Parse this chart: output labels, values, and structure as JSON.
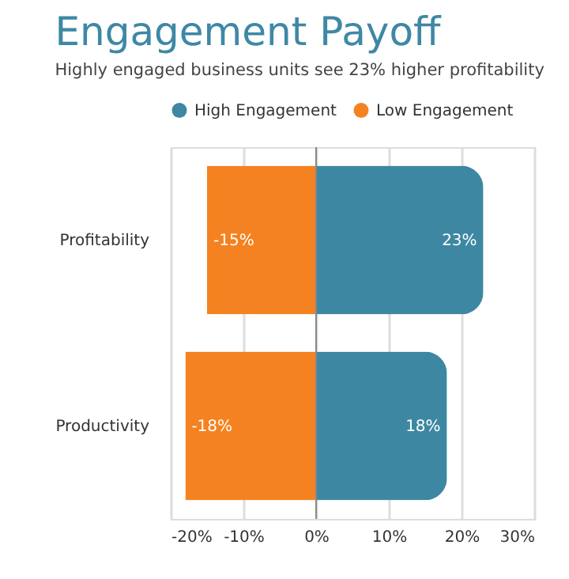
{
  "chart_data": {
    "type": "bar",
    "orientation": "horizontal",
    "title": "Engagement Payoff",
    "subtitle": "Highly engaged business units see 23% higher profitability",
    "categories": [
      "Profitability",
      "Productivity"
    ],
    "series": [
      {
        "name": "High Engagement",
        "color": "#3d87a2",
        "values": [
          23,
          18
        ],
        "value_labels": [
          "23%",
          "18%"
        ]
      },
      {
        "name": "Low Engagement",
        "color": "#f58220",
        "values": [
          -15,
          -18
        ],
        "value_labels": [
          "-15%",
          "-18%"
        ]
      }
    ],
    "xlim": [
      -20,
      30
    ],
    "xticks": [
      {
        "value": -20,
        "label": "-20%"
      },
      {
        "value": -10,
        "label": "-10%"
      },
      {
        "value": 0,
        "label": "0%"
      },
      {
        "value": 10,
        "label": "10%"
      },
      {
        "value": 20,
        "label": "20%"
      },
      {
        "value": 30,
        "label": "30%"
      }
    ],
    "stacked": true,
    "grid": "x",
    "legend": "top"
  }
}
